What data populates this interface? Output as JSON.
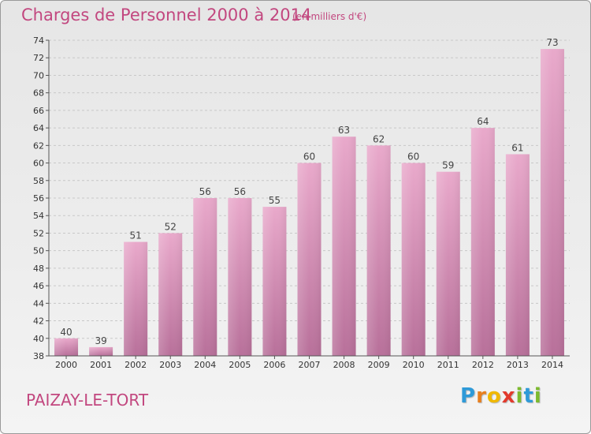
{
  "chart_data": {
    "type": "bar",
    "title": "Charges de Personnel 2000 à 2014",
    "subtitle": "(en milliers d'€)",
    "categories": [
      "2000",
      "2001",
      "2002",
      "2003",
      "2004",
      "2005",
      "2006",
      "2007",
      "2008",
      "2009",
      "2010",
      "2011",
      "2012",
      "2013",
      "2014"
    ],
    "values": [
      40,
      39,
      51,
      52,
      56,
      56,
      55,
      60,
      63,
      62,
      60,
      59,
      64,
      61,
      73
    ],
    "ylim": [
      38,
      74
    ],
    "yticks": [
      38,
      40,
      42,
      44,
      46,
      48,
      50,
      52,
      54,
      56,
      58,
      60,
      62,
      64,
      66,
      68,
      70,
      72,
      74
    ],
    "grid": true,
    "bar_color": "#d98cb8"
  },
  "location": "PAIZAY-LE-TORT",
  "logo": {
    "letters": [
      "P",
      "r",
      "o",
      "x",
      "i",
      "t",
      "i"
    ],
    "colors": [
      "#2e9ad8",
      "#e87f1e",
      "#f0b800",
      "#e23a2d",
      "#7cba2e",
      "#2e9ad8",
      "#7cba2e"
    ]
  }
}
